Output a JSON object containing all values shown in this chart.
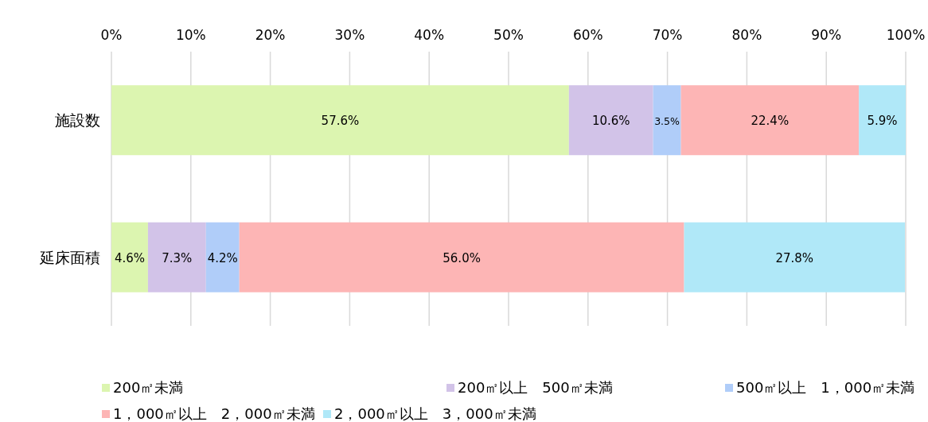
{
  "chart_data": {
    "type": "bar",
    "orientation": "horizontal",
    "stacked": true,
    "categories": [
      "施設数",
      "延床面積"
    ],
    "series": [
      {
        "name": "200㎡未満",
        "color": "#dcf5b0",
        "values": [
          57.6,
          4.6
        ],
        "value_labels": [
          "57.6%",
          "4.6%"
        ]
      },
      {
        "name": "200㎡以上　500㎡未満",
        "color": "#d2c3e8",
        "values": [
          10.6,
          7.3
        ],
        "value_labels": [
          "10.6%",
          "7.3%"
        ]
      },
      {
        "name": "500㎡以上　1，000㎡未満",
        "color": "#b0cdf9",
        "values": [
          3.5,
          4.2
        ],
        "value_labels": [
          "3.5%",
          "4.2%"
        ]
      },
      {
        "name": "1，000㎡以上　2，000㎡未満",
        "color": "#fdb5b5",
        "values": [
          22.4,
          56.0
        ],
        "value_labels": [
          "22.4%",
          "56.0%"
        ]
      },
      {
        "name": "2，000㎡以上　3，000㎡未満",
        "color": "#b0e8f8",
        "values": [
          5.9,
          27.8
        ],
        "value_labels": [
          "5.9%",
          "27.8%"
        ]
      }
    ],
    "xlim": [
      0,
      100
    ],
    "xticks": [
      {
        "value": 0,
        "label": "0%"
      },
      {
        "value": 10,
        "label": "10%"
      },
      {
        "value": 20,
        "label": "20%"
      },
      {
        "value": 30,
        "label": "30%"
      },
      {
        "value": 40,
        "label": "40%"
      },
      {
        "value": 50,
        "label": "50%"
      },
      {
        "value": 60,
        "label": "60%"
      },
      {
        "value": 70,
        "label": "70%"
      },
      {
        "value": 80,
        "label": "80%"
      },
      {
        "value": 90,
        "label": "90%"
      },
      {
        "value": 100,
        "label": "100%"
      }
    ],
    "grid": "x",
    "legend": "bottom"
  }
}
